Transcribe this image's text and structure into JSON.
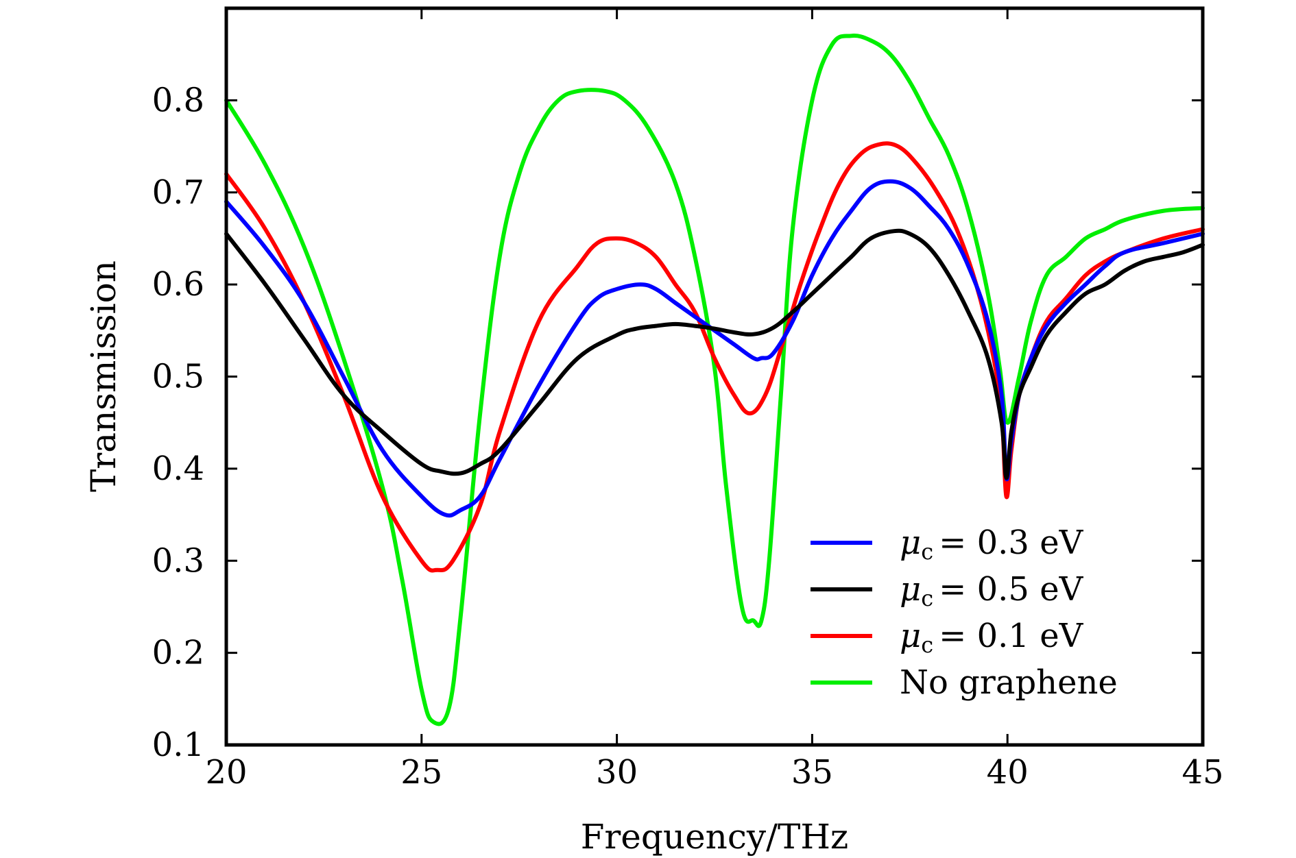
{
  "chart_data": {
    "type": "line",
    "title": "",
    "xlabel": "Frequency/THz",
    "ylabel": "Transmission",
    "xlim": [
      20,
      45
    ],
    "ylim": [
      0.1,
      0.9
    ],
    "xticks": [
      20,
      25,
      30,
      35,
      40,
      45
    ],
    "yticks": [
      0.1,
      0.2,
      0.3,
      0.4,
      0.5,
      0.6,
      0.7,
      0.8
    ],
    "xtick_labels": [
      "20",
      "25",
      "30",
      "35",
      "40",
      "45"
    ],
    "ytick_labels": [
      "0.1",
      "0.2",
      "0.3",
      "0.4",
      "0.5",
      "0.6",
      "0.7",
      "0.8"
    ],
    "grid": false,
    "legend_position": "bottom-right",
    "series": [
      {
        "name": "No graphene",
        "legend_text": "No graphene",
        "color": "#00ee00",
        "x": [
          20,
          21,
          22,
          23,
          24,
          24.5,
          25,
          25.3,
          25.7,
          26,
          26.5,
          27,
          27.5,
          28,
          28.5,
          29,
          29.7,
          30.2,
          30.8,
          31.5,
          32,
          32.5,
          32.8,
          33.2,
          33.5,
          33.7,
          33.9,
          34.2,
          34.5,
          35,
          35.5,
          36,
          36.5,
          37,
          37.5,
          38,
          38.5,
          39,
          39.5,
          39.8,
          40,
          40.3,
          40.6,
          41,
          41.5,
          42,
          42.5,
          43,
          44,
          45
        ],
        "y": [
          0.8,
          0.73,
          0.64,
          0.52,
          0.38,
          0.28,
          0.16,
          0.125,
          0.14,
          0.24,
          0.46,
          0.63,
          0.72,
          0.77,
          0.8,
          0.81,
          0.81,
          0.8,
          0.77,
          0.71,
          0.63,
          0.51,
          0.38,
          0.25,
          0.235,
          0.235,
          0.3,
          0.48,
          0.66,
          0.8,
          0.86,
          0.87,
          0.865,
          0.85,
          0.82,
          0.78,
          0.74,
          0.68,
          0.59,
          0.51,
          0.45,
          0.5,
          0.56,
          0.61,
          0.63,
          0.65,
          0.66,
          0.67,
          0.68,
          0.683
        ]
      },
      {
        "name": "μc=0.1 eV",
        "legend_prefix": "μ",
        "legend_sub": "c",
        "legend_text": "= 0.1 eV",
        "color": "#ff0000",
        "x": [
          20,
          21,
          22,
          23,
          24,
          25,
          25.4,
          25.8,
          26.5,
          27,
          28,
          29,
          29.5,
          30,
          30.5,
          31,
          31.5,
          32,
          32.5,
          33,
          33.4,
          33.8,
          34.2,
          34.7,
          35.2,
          35.7,
          36.2,
          36.7,
          37.2,
          37.7,
          38.2,
          38.7,
          39.2,
          39.6,
          39.85,
          39.97,
          40.1,
          40.3,
          40.6,
          41,
          41.5,
          42,
          42.5,
          43,
          44,
          45
        ],
        "y": [
          0.72,
          0.66,
          0.58,
          0.48,
          0.37,
          0.3,
          0.29,
          0.3,
          0.36,
          0.44,
          0.56,
          0.62,
          0.645,
          0.65,
          0.645,
          0.63,
          0.6,
          0.57,
          0.52,
          0.48,
          0.46,
          0.48,
          0.53,
          0.6,
          0.66,
          0.71,
          0.74,
          0.752,
          0.75,
          0.73,
          0.7,
          0.66,
          0.6,
          0.53,
          0.46,
          0.37,
          0.42,
          0.48,
          0.52,
          0.56,
          0.585,
          0.61,
          0.625,
          0.635,
          0.65,
          0.66
        ]
      },
      {
        "name": "μc=0.3 eV",
        "legend_prefix": "μ",
        "legend_sub": "c",
        "legend_text": "= 0.3 eV",
        "color": "#0000ff",
        "x": [
          20,
          21,
          22,
          23,
          24,
          25,
          25.6,
          26,
          26.5,
          27,
          28,
          29,
          29.5,
          30,
          30.6,
          31,
          31.5,
          32,
          32.5,
          33,
          33.5,
          33.7,
          34,
          34.5,
          35,
          35.5,
          36,
          36.5,
          37,
          37.5,
          38,
          38.5,
          39,
          39.5,
          39.85,
          39.97,
          40.1,
          40.3,
          40.6,
          41,
          41.5,
          42,
          42.5,
          43,
          44,
          45
        ],
        "y": [
          0.69,
          0.64,
          0.58,
          0.5,
          0.42,
          0.37,
          0.35,
          0.355,
          0.37,
          0.41,
          0.49,
          0.56,
          0.585,
          0.595,
          0.6,
          0.595,
          0.58,
          0.565,
          0.55,
          0.535,
          0.52,
          0.52,
          0.525,
          0.56,
          0.61,
          0.65,
          0.68,
          0.705,
          0.712,
          0.705,
          0.685,
          0.66,
          0.62,
          0.56,
          0.48,
          0.39,
          0.43,
          0.48,
          0.52,
          0.555,
          0.58,
          0.6,
          0.62,
          0.635,
          0.645,
          0.655
        ]
      },
      {
        "name": "μc=0.5 eV",
        "legend_prefix": "μ",
        "legend_sub": "c",
        "legend_text": "= 0.5 eV",
        "color": "#000000",
        "x": [
          20,
          21,
          22,
          23,
          24,
          25,
          25.5,
          26,
          26.5,
          27,
          28,
          29,
          30,
          30.5,
          31,
          31.5,
          32,
          32.5,
          33,
          33.5,
          34,
          34.5,
          35,
          35.5,
          36,
          36.5,
          37.1,
          37.5,
          38,
          38.5,
          39,
          39.5,
          39.85,
          39.97,
          40.1,
          40.3,
          40.6,
          41,
          41.5,
          42,
          42.5,
          43,
          43.5,
          44,
          44.5,
          45
        ],
        "y": [
          0.655,
          0.6,
          0.54,
          0.48,
          0.44,
          0.405,
          0.397,
          0.395,
          0.405,
          0.42,
          0.47,
          0.52,
          0.545,
          0.552,
          0.555,
          0.557,
          0.555,
          0.552,
          0.548,
          0.546,
          0.553,
          0.57,
          0.59,
          0.61,
          0.63,
          0.65,
          0.658,
          0.655,
          0.64,
          0.61,
          0.57,
          0.52,
          0.45,
          0.39,
          0.44,
          0.48,
          0.51,
          0.545,
          0.57,
          0.59,
          0.6,
          0.615,
          0.625,
          0.63,
          0.635,
          0.643
        ]
      }
    ],
    "legend_order": [
      "μc=0.3 eV",
      "μc=0.5 eV",
      "μc=0.1 eV",
      "No graphene"
    ]
  }
}
